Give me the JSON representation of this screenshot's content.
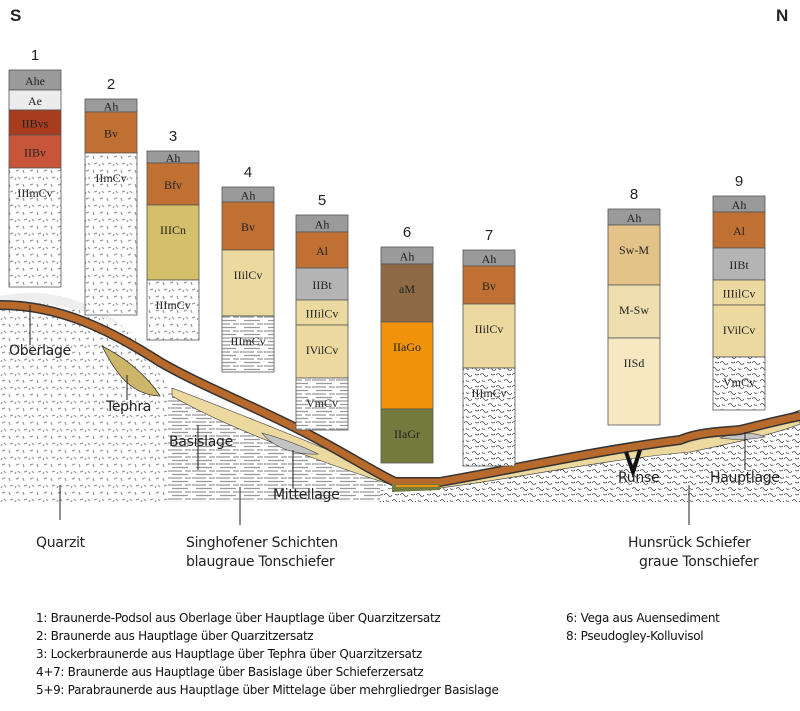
{
  "directions": {
    "south": "S",
    "north": "N"
  },
  "profiles": [
    {
      "number": "1",
      "layers": [
        {
          "label": "Ahe",
          "color": "#9a9a9a"
        },
        {
          "label": "Ae",
          "color": "#ececec"
        },
        {
          "label": "IIBvs",
          "color": "#a83c1e"
        },
        {
          "label": "IIBv",
          "color": "#c7553a"
        },
        {
          "label": "IIImCv",
          "pattern": "quartzite"
        }
      ]
    },
    {
      "number": "2",
      "layers": [
        {
          "label": "Ah",
          "color": "#9a9a9a"
        },
        {
          "label": "Bv",
          "color": "#c07033"
        },
        {
          "label": "IImCv",
          "pattern": "quartzite"
        }
      ]
    },
    {
      "number": "3",
      "layers": [
        {
          "label": "Ah",
          "color": "#9a9a9a"
        },
        {
          "label": "Bfv",
          "color": "#c07033"
        },
        {
          "label": "IIICn",
          "color": "#d4bf6a"
        },
        {
          "label": "IIImCv",
          "pattern": "quartzite"
        }
      ]
    },
    {
      "number": "4",
      "layers": [
        {
          "label": "Ah",
          "color": "#9a9a9a"
        },
        {
          "label": "Bv",
          "color": "#c07033"
        },
        {
          "label": "IIilCv",
          "color": "#ecd9a0"
        },
        {
          "label": "IIImCv",
          "pattern": "slate"
        }
      ]
    },
    {
      "number": "5",
      "layers": [
        {
          "label": "Ah",
          "color": "#9a9a9a"
        },
        {
          "label": "Al",
          "color": "#c07033"
        },
        {
          "label": "IIBt",
          "color": "#b4b4b4"
        },
        {
          "label": "IIIilCv",
          "color": "#ecd9a0"
        },
        {
          "label": "IVilCv",
          "color": "#ecd9a0"
        },
        {
          "label": "VmCv",
          "pattern": "slate"
        }
      ]
    },
    {
      "number": "6",
      "layers": [
        {
          "label": "Ah",
          "color": "#9a9a9a"
        },
        {
          "label": "aM",
          "color": "#8d6a45"
        },
        {
          "label": "IIaGo",
          "color": "#f0930a"
        },
        {
          "label": "IIaGr",
          "color": "#737b3f"
        }
      ]
    },
    {
      "number": "7",
      "layers": [
        {
          "label": "Ah",
          "color": "#9a9a9a"
        },
        {
          "label": "Bv",
          "color": "#c07033"
        },
        {
          "label": "IIilCv",
          "color": "#ecd9a0"
        },
        {
          "label": "IIImCv",
          "pattern": "schist"
        }
      ]
    },
    {
      "number": "8",
      "layers": [
        {
          "label": "Ah",
          "color": "#9a9a9a"
        },
        {
          "label": "Sw-M",
          "color": "#e3c388"
        },
        {
          "label": "M-Sw",
          "color": "#efdfb0"
        },
        {
          "label": "IISd",
          "color": "#f6e9c2"
        }
      ]
    },
    {
      "number": "9",
      "layers": [
        {
          "label": "Ah",
          "color": "#9a9a9a"
        },
        {
          "label": "Al",
          "color": "#c07033"
        },
        {
          "label": "IIBt",
          "color": "#b4b4b4"
        },
        {
          "label": "IIIilCv",
          "color": "#ecd9a0"
        },
        {
          "label": "IVilCv",
          "color": "#ecd9a0"
        },
        {
          "label": "VmCv",
          "pattern": "schist"
        }
      ]
    }
  ],
  "landscape_labels": {
    "oberlage": "Oberlage",
    "tephra": "Tephra",
    "basislage": "Basislage",
    "mittellage": "Mittellage",
    "runse": "Runse",
    "hauptlage": "Hauptlage",
    "quarzit": "Quarzit",
    "singhofener_1": "Singhofener Schichten",
    "singhofener_2": "blaugraue Tonschiefer",
    "hunsrueck_1": "Hunsrück Schiefer",
    "hunsrueck_2": "graue Tonschiefer"
  },
  "legend": {
    "left": [
      "1: Braunerde-Podsol aus Oberlage über Hauptlage über Quarzitzersatz",
      "2: Braunerde aus Hauptlage über Quarzitzersatz",
      "3: Lockerbraunerde aus Hauptlage über Tephra über Quarzitzersatz",
      "4+7: Braunerde aus Hauptlage über Basislage über Schieferzersatz",
      "5+9: Parabraunerde aus Hauptlage über Mittelage über mehrgliedrger Basislage"
    ],
    "right": [
      "6: Vega aus Auensediment",
      "8: Pseudogley-Kolluvisol"
    ]
  },
  "colors": {
    "hauptlage": "#b8692c",
    "basislage": "#ecd9a0",
    "tephra": "#cdb56a",
    "mittellage": "#c4c4c4"
  }
}
